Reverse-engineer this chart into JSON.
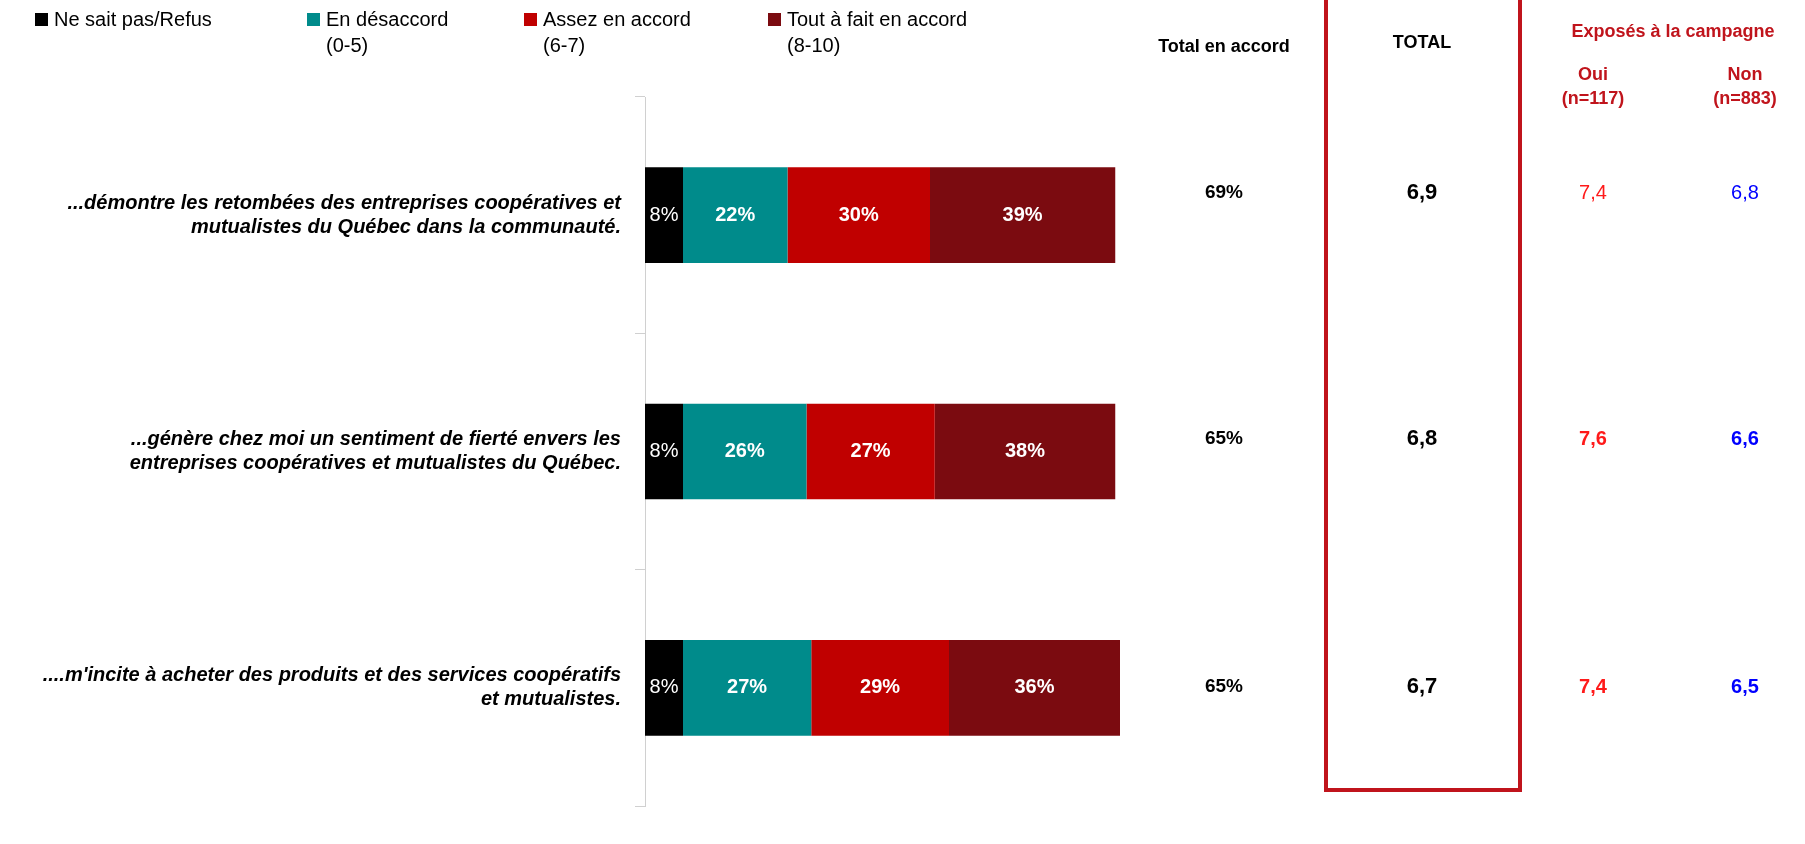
{
  "chart_data": {
    "type": "bar",
    "orientation": "horizontal",
    "stacked": true,
    "categories": [
      "...démontre les retombées des entreprises coopératives et mutualistes du Québec dans la communauté.",
      "...génère chez moi un sentiment de fierté envers les entreprises coopératives et mutualistes du Québec.",
      "....m'incite à acheter des produits et des services coopératifs et mutualistes."
    ],
    "series": [
      {
        "name": "Ne sait pas/Refus",
        "color": "#000000",
        "values": [
          8,
          8,
          8
        ],
        "value_labels": [
          "8%",
          "8%",
          "8%"
        ]
      },
      {
        "name": "En désaccord (0-5)",
        "color": "#008b8b",
        "values": [
          22,
          26,
          27
        ],
        "value_labels": [
          "22%",
          "26%",
          "27%"
        ]
      },
      {
        "name": "Assez en accord (6-7)",
        "color": "#c00000",
        "values": [
          30,
          27,
          29
        ],
        "value_labels": [
          "30%",
          "27%",
          "29%"
        ]
      },
      {
        "name": "Tout à fait en accord (8-10)",
        "color": "#7b0b10",
        "values": [
          39,
          38,
          36
        ],
        "value_labels": [
          "39%",
          "38%",
          "36%"
        ]
      }
    ],
    "legend": "top left",
    "tick_labels": "y",
    "grid": false,
    "annotations": [
      "Total en accord",
      "TOTAL",
      "Exposés à la campagne",
      "Oui (n=117)",
      "Non (n=883)",
      "69%",
      "6,9",
      "7,4",
      "6,8",
      "65%",
      "6,8",
      "7,6",
      "6,6",
      "65%",
      "6,7",
      "7,4",
      "6,5"
    ]
  }
}
